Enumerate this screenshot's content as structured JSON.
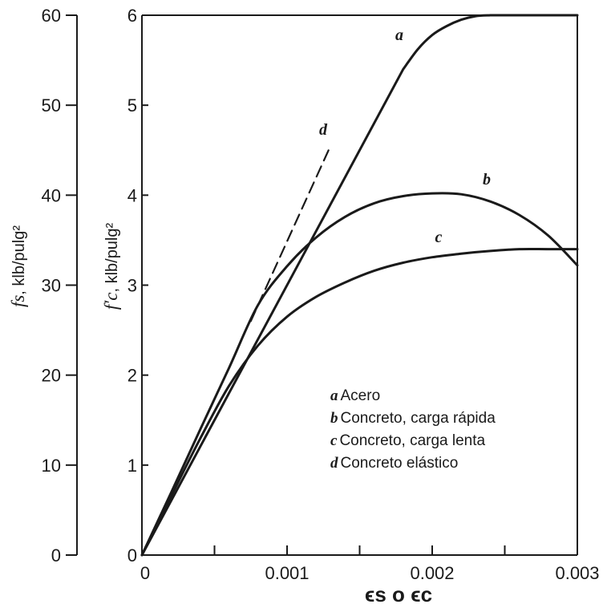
{
  "chart_data": {
    "type": "line",
    "xlabel": "ϵs o ϵc",
    "ylabel_left": {
      "var": "fs",
      "unit": ", klb/pulg²"
    },
    "ylabel_right": {
      "var": "f′c",
      "unit": ", klb/pulg²"
    },
    "xlim": [
      0,
      0.003
    ],
    "ylim_fs": [
      0,
      60
    ],
    "ylim_fc": [
      0,
      6
    ],
    "x_tick_labels": [
      "0",
      "0.001",
      "0.002",
      "0.003"
    ],
    "y_fs_tick_labels": [
      "0",
      "10",
      "20",
      "30",
      "40",
      "50",
      "60"
    ],
    "y_fc_tick_labels": [
      "0",
      "1",
      "2",
      "3",
      "4",
      "5",
      "6"
    ],
    "grid": false,
    "legend_position": "lower-right",
    "series": [
      {
        "name": "Acero",
        "letter": "a",
        "x": [
          0,
          0.0005,
          0.001,
          0.0015,
          0.0018,
          0.0019,
          0.002,
          0.0021,
          0.0022,
          0.0023,
          0.0024,
          0.003
        ],
        "values": [
          0,
          1.5,
          3.0,
          4.5,
          5.4,
          5.62,
          5.78,
          5.88,
          5.95,
          5.99,
          6.0,
          6.0
        ]
      },
      {
        "name": "Concreto, carga rápida",
        "letter": "b",
        "x": [
          0,
          0.0002,
          0.0004,
          0.0006,
          0.0008,
          0.001,
          0.0012,
          0.0014,
          0.0016,
          0.0018,
          0.002,
          0.0022,
          0.0024,
          0.0026,
          0.0028,
          0.003
        ],
        "values": [
          0,
          0.69,
          1.39,
          2.08,
          2.78,
          3.21,
          3.53,
          3.76,
          3.91,
          3.99,
          4.02,
          4.01,
          3.93,
          3.78,
          3.55,
          3.22
        ]
      },
      {
        "name": "Concreto, carga lenta",
        "letter": "c",
        "x": [
          0,
          0.0002,
          0.0004,
          0.0006,
          0.0008,
          0.001,
          0.0012,
          0.0014,
          0.0016,
          0.0018,
          0.002,
          0.0022,
          0.0024,
          0.0026,
          0.0028,
          0.003
        ],
        "values": [
          0,
          0.65,
          1.29,
          1.88,
          2.33,
          2.65,
          2.87,
          3.03,
          3.16,
          3.25,
          3.31,
          3.35,
          3.38,
          3.4,
          3.4,
          3.4
        ]
      },
      {
        "name": "Concreto elástico",
        "letter": "d",
        "dashed": true,
        "x": [
          0.00075,
          0.0013
        ],
        "values": [
          2.6,
          4.55
        ]
      }
    ],
    "colors": {
      "ink": "#1a1a1a",
      "background": "#ffffff"
    }
  }
}
